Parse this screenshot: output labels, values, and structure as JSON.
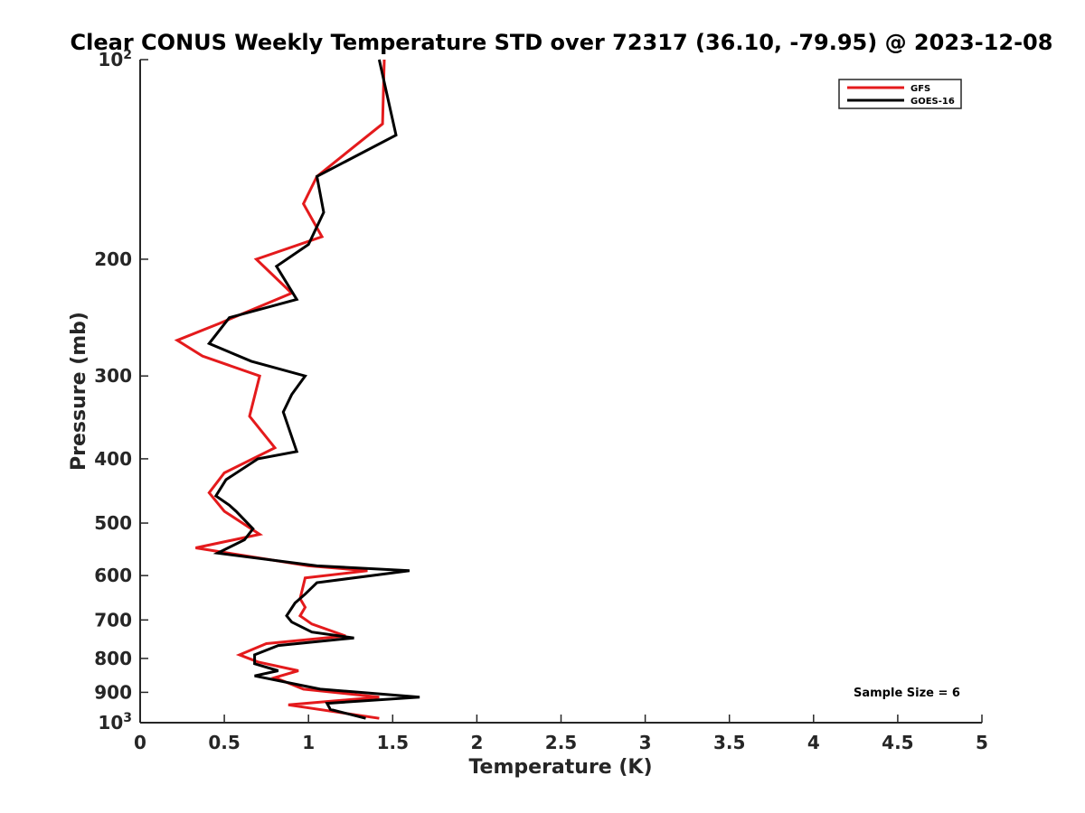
{
  "chart_data": {
    "type": "line",
    "title": "Clear CONUS Weekly Temperature STD over 72317 (36.10, -79.95) @ 2023-12-08",
    "xlabel": "Temperature (K)",
    "ylabel": "Pressure (mb)",
    "xlim": [
      0,
      5
    ],
    "ylim": [
      100,
      1000
    ],
    "y_scale": "log",
    "y_reversed": true,
    "grid": false,
    "legend_position": "top-right",
    "x_ticks": [
      "0",
      "0.5",
      "1",
      "1.5",
      "2",
      "2.5",
      "3",
      "3.5",
      "4",
      "4.5",
      "5"
    ],
    "x_tick_values": [
      0,
      0.5,
      1,
      1.5,
      2,
      2.5,
      3,
      3.5,
      4,
      4.5,
      5
    ],
    "y_ticks": [
      {
        "value": 100,
        "label": "10",
        "sup": "2"
      },
      {
        "value": 200,
        "label": "200",
        "sup": ""
      },
      {
        "value": 300,
        "label": "300",
        "sup": ""
      },
      {
        "value": 400,
        "label": "400",
        "sup": ""
      },
      {
        "value": 500,
        "label": "500",
        "sup": ""
      },
      {
        "value": 600,
        "label": "600",
        "sup": ""
      },
      {
        "value": 700,
        "label": "700",
        "sup": ""
      },
      {
        "value": 800,
        "label": "800",
        "sup": ""
      },
      {
        "value": 900,
        "label": "900",
        "sup": ""
      },
      {
        "value": 1000,
        "label": "10",
        "sup": "3"
      }
    ],
    "series": [
      {
        "name": "GFS",
        "color": "#e41a1c",
        "points": [
          [
            1.45,
            100
          ],
          [
            1.44,
            125
          ],
          [
            1.05,
            150
          ],
          [
            0.97,
            165
          ],
          [
            1.08,
            185
          ],
          [
            0.69,
            200
          ],
          [
            0.9,
            225
          ],
          [
            0.47,
            250
          ],
          [
            0.22,
            265
          ],
          [
            0.37,
            280
          ],
          [
            0.71,
            300
          ],
          [
            0.65,
            345
          ],
          [
            0.8,
            385
          ],
          [
            0.5,
            420
          ],
          [
            0.41,
            450
          ],
          [
            0.5,
            480
          ],
          [
            0.71,
            520
          ],
          [
            0.33,
            545
          ],
          [
            1.0,
            580
          ],
          [
            1.35,
            590
          ],
          [
            0.98,
            605
          ],
          [
            0.95,
            650
          ],
          [
            0.98,
            670
          ],
          [
            0.95,
            690
          ],
          [
            1.02,
            710
          ],
          [
            1.22,
            740
          ],
          [
            0.75,
            760
          ],
          [
            0.59,
            790
          ],
          [
            0.7,
            810
          ],
          [
            0.94,
            835
          ],
          [
            0.8,
            855
          ],
          [
            0.97,
            890
          ],
          [
            1.42,
            915
          ],
          [
            0.88,
            940
          ],
          [
            1.42,
            985
          ]
        ]
      },
      {
        "name": "GOES-16",
        "color": "#000000",
        "points": [
          [
            1.42,
            100
          ],
          [
            1.52,
            130
          ],
          [
            1.05,
            150
          ],
          [
            1.09,
            170
          ],
          [
            1.0,
            190
          ],
          [
            0.81,
            205
          ],
          [
            0.93,
            230
          ],
          [
            0.53,
            245
          ],
          [
            0.41,
            268
          ],
          [
            0.66,
            285
          ],
          [
            0.98,
            300
          ],
          [
            0.9,
            320
          ],
          [
            0.85,
            340
          ],
          [
            0.93,
            390
          ],
          [
            0.7,
            400
          ],
          [
            0.51,
            430
          ],
          [
            0.45,
            455
          ],
          [
            0.53,
            470
          ],
          [
            0.57,
            480
          ],
          [
            0.67,
            510
          ],
          [
            0.62,
            530
          ],
          [
            0.46,
            555
          ],
          [
            1.05,
            580
          ],
          [
            1.6,
            590
          ],
          [
            1.05,
            615
          ],
          [
            0.98,
            640
          ],
          [
            0.92,
            660
          ],
          [
            0.87,
            690
          ],
          [
            0.9,
            705
          ],
          [
            1.02,
            730
          ],
          [
            1.27,
            745
          ],
          [
            0.82,
            765
          ],
          [
            0.68,
            790
          ],
          [
            0.68,
            815
          ],
          [
            0.82,
            835
          ],
          [
            0.68,
            850
          ],
          [
            1.07,
            890
          ],
          [
            1.66,
            915
          ],
          [
            1.11,
            935
          ],
          [
            1.13,
            955
          ],
          [
            1.34,
            985
          ]
        ]
      }
    ],
    "annotations": [
      "Sample Size = 6"
    ]
  }
}
